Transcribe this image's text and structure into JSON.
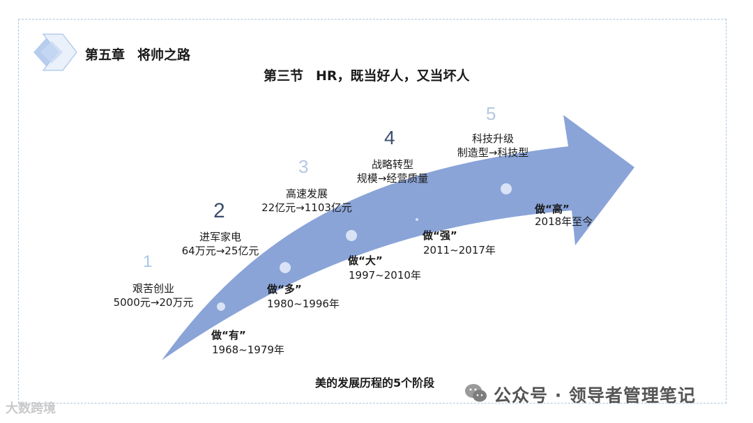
{
  "header": {
    "chapter_label": "第五章",
    "chapter_title": "将帅之路",
    "section_label": "第三节",
    "section_title": "HR，既当好人，又当坏人"
  },
  "stages": [
    {
      "number": "1",
      "title": "艰苦创业",
      "detail": "5000元→20万元",
      "phase": "做“有”",
      "years": "1968~1979年"
    },
    {
      "number": "2",
      "title": "进军家电",
      "detail": "64万元→25亿元",
      "phase": "做“多”",
      "years": "1980~1996年"
    },
    {
      "number": "3",
      "title": "高速发展",
      "detail": "22亿元→1103亿元",
      "phase": "做“大”",
      "years": "1997~2010年"
    },
    {
      "number": "4",
      "title": "战略转型",
      "detail": "规模→经营质量",
      "phase": "做“强”",
      "years": "2011~2017年"
    },
    {
      "number": "5",
      "title": "科技升级",
      "detail": "制造型→科技型",
      "phase": "做“高”",
      "years": "2018年至今"
    }
  ],
  "caption": "美的发展历程的5个阶段",
  "watermarks": {
    "right": "公众号 · 领导者管理笔记",
    "left": "大数跨境"
  },
  "colors": {
    "arrow": "#8aa4d8",
    "frame_border": "#a9c7df",
    "logo": "#a9c4ea"
  }
}
